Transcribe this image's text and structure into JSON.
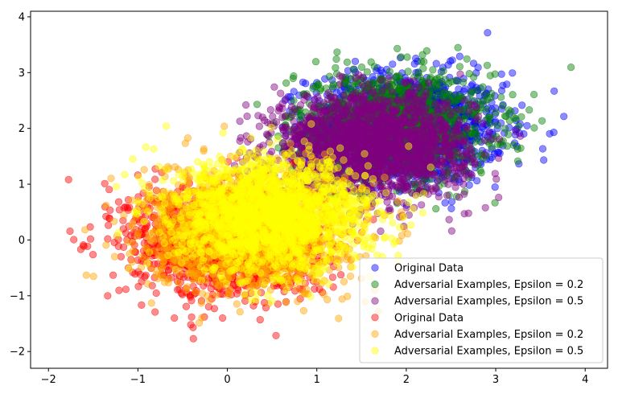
{
  "chart_data": {
    "type": "scatter",
    "title": "",
    "xlabel": "",
    "ylabel": "",
    "xlim": [
      -2.2,
      4.25
    ],
    "ylim": [
      -2.3,
      4.1
    ],
    "xticks": [
      -2,
      -1,
      0,
      1,
      2,
      3,
      4
    ],
    "yticks": [
      -2,
      -1,
      0,
      1,
      2,
      3,
      4
    ],
    "grid": false,
    "legend_position": "lower-right",
    "series": [
      {
        "name": "Original Data",
        "color": "#0000ff",
        "alpha": 0.45,
        "cluster": {
          "mean": [
            2.0,
            2.0
          ],
          "std": [
            0.55,
            0.5
          ],
          "n": 1400,
          "range_x": [
            0.6,
            3.95
          ],
          "range_y": [
            0.5,
            3.8
          ]
        }
      },
      {
        "name": "Adversarial Examples, Epsilon = 0.2",
        "color": "#008000",
        "alpha": 0.45,
        "cluster": {
          "mean": [
            1.85,
            2.05
          ],
          "std": [
            0.55,
            0.48
          ],
          "n": 1400,
          "range_x": [
            0.25,
            3.85
          ],
          "range_y": [
            0.35,
            3.55
          ]
        }
      },
      {
        "name": "Adversarial Examples, Epsilon = 0.5",
        "color": "#800080",
        "alpha": 0.45,
        "cluster": {
          "mean": [
            1.6,
            1.7
          ],
          "std": [
            0.55,
            0.45
          ],
          "n": 1800,
          "range_x": [
            0.05,
            3.3
          ],
          "range_y": [
            0.15,
            3.0
          ]
        }
      },
      {
        "name": "Original Data",
        "color": "#ff0000",
        "alpha": 0.45,
        "cluster": {
          "mean": [
            0.0,
            0.0
          ],
          "std": [
            0.55,
            0.5
          ],
          "n": 1500,
          "range_x": [
            -1.85,
            2.1
          ],
          "range_y": [
            -2.0,
            1.7
          ]
        }
      },
      {
        "name": "Adversarial Examples, Epsilon = 0.2",
        "color": "#ffa500",
        "alpha": 0.45,
        "cluster": {
          "mean": [
            0.2,
            0.15
          ],
          "std": [
            0.55,
            0.5
          ],
          "n": 1500,
          "range_x": [
            -1.6,
            2.4
          ],
          "range_y": [
            -1.85,
            2.1
          ]
        }
      },
      {
        "name": "Adversarial Examples, Epsilon = 0.5",
        "color": "#ffff00",
        "alpha": 0.45,
        "cluster": {
          "mean": [
            0.5,
            0.45
          ],
          "std": [
            0.55,
            0.5
          ],
          "n": 1900,
          "range_x": [
            -1.6,
            2.7
          ],
          "range_y": [
            -1.6,
            2.25
          ]
        }
      }
    ]
  }
}
